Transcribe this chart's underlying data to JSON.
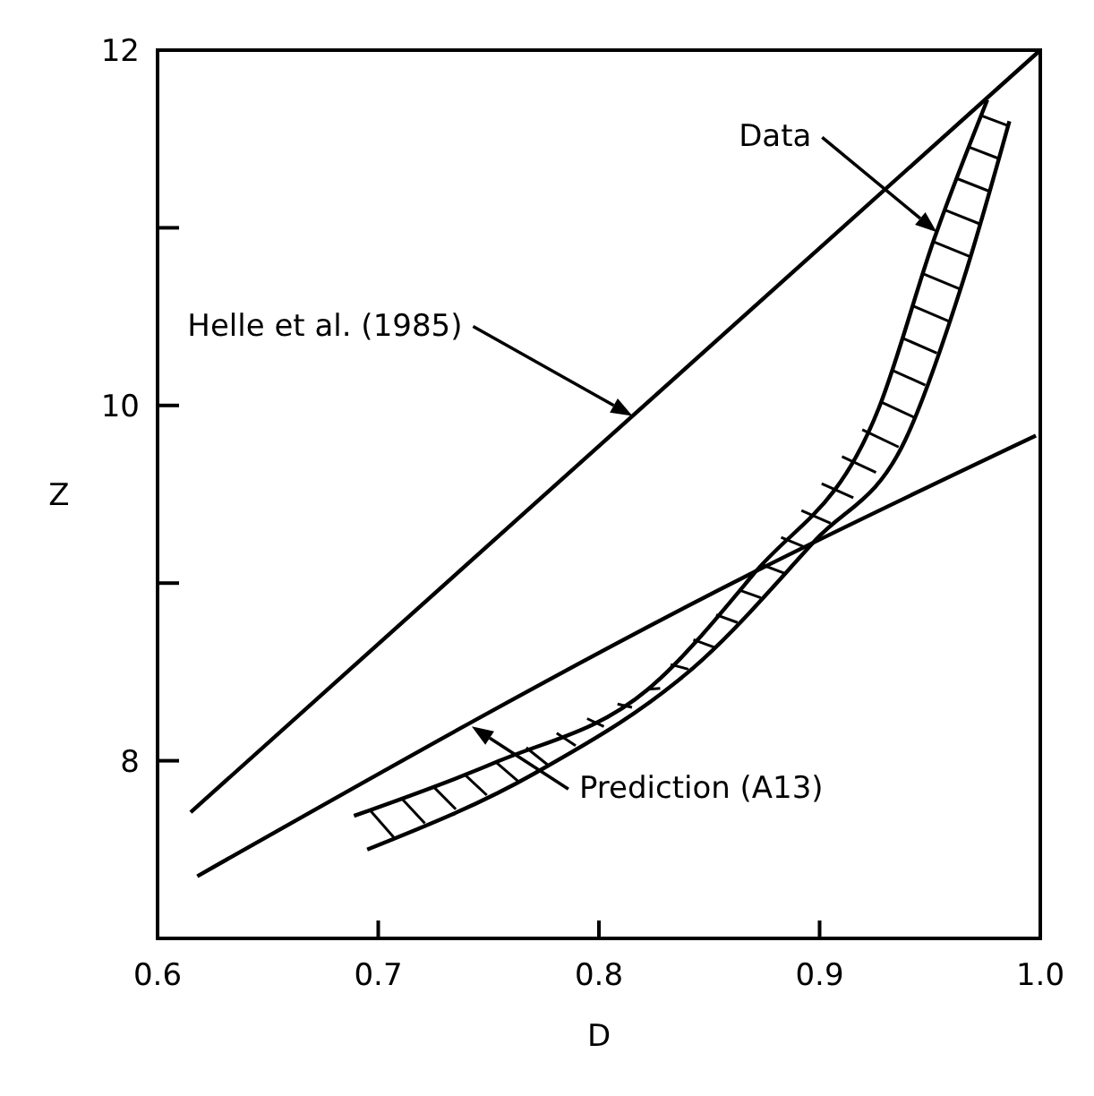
{
  "chart_data": {
    "type": "line",
    "xlabel": "D",
    "ylabel": "Z",
    "xlim": [
      0.6,
      1.0
    ],
    "ylim": [
      7,
      12
    ],
    "xticks": [
      0.6,
      0.7,
      0.8,
      0.9,
      {
        "value": 1,
        "label": "1.0"
      }
    ],
    "yticks": [
      8,
      {
        "value": 9,
        "label": null
      },
      10,
      {
        "value": 11,
        "label": null
      },
      12
    ],
    "grid": false,
    "marker": "none",
    "line_style": "solid",
    "series": [
      {
        "color": "#000000",
        "x": [
          0.615,
          1.0
        ],
        "values": [
          7.71,
          12
        ]
      },
      {
        "color": "#000000",
        "x": [
          0.618,
          0.87,
          0.998
        ],
        "values": [
          7.35,
          9.06,
          9.83
        ]
      },
      {
        "color": "#000000",
        "x": [
          0.689,
          0.753,
          0.822,
          0.87,
          0.927,
          0.952,
          0.976
        ],
        "values": [
          7.69,
          7.99,
          8.4,
          9.05,
          9.99,
          10.94,
          11.72
        ]
      },
      {
        "color": "#000000",
        "x": [
          0.695,
          0.771,
          0.847,
          0.898,
          0.939,
          0.965,
          0.986
        ],
        "values": [
          7.5,
          7.93,
          8.57,
          9.24,
          9.81,
          10.7,
          11.6
        ]
      }
    ],
    "annotations": [
      "Helle et al. (1985)",
      "Data",
      "Prediction (A13)"
    ]
  }
}
